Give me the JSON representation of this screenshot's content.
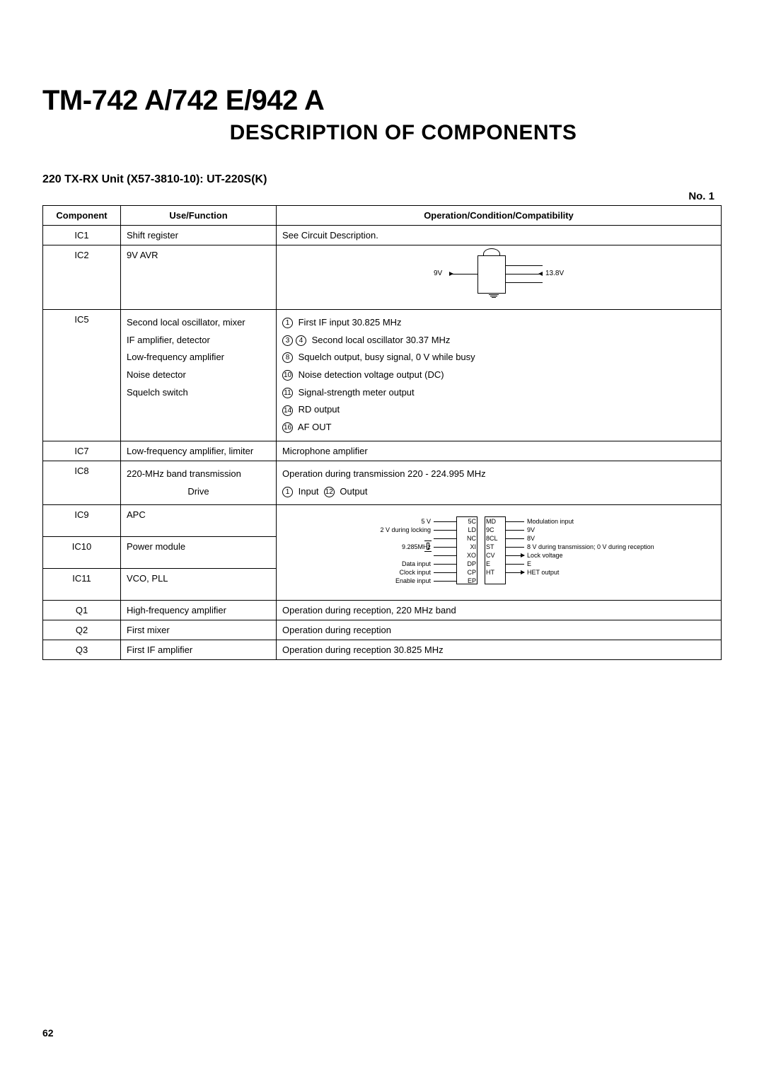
{
  "title_model": "TM-742 A/742 E/942 A",
  "section_title": "DESCRIPTION OF COMPONENTS",
  "unit_line": "220 TX-RX Unit (X57-3810-10): UT-220S(K)",
  "table_number": "No. 1",
  "headers": {
    "c1": "Component",
    "c2": "Use/Function",
    "c3": "Operation/Condition/Compatibility"
  },
  "rows": {
    "ic1": {
      "comp": "IC1",
      "fn": "Shift register",
      "op": "See Circuit Description."
    },
    "ic2": {
      "comp": "IC2",
      "fn": "9V AVR",
      "diag": {
        "left_label": "9V",
        "right_label": "13.8V"
      }
    },
    "ic5": {
      "comp": "IC5",
      "fns": [
        "Second local oscillator, mixer",
        "IF amplifier, detector",
        "Low-frequency amplifier",
        "Noise detector",
        "Squelch switch"
      ],
      "ops": [
        {
          "pins": [
            "1"
          ],
          "text": "First IF input 30.825 MHz"
        },
        {
          "pins": [
            "3",
            "4"
          ],
          "text": "Second local oscillator 30.37 MHz"
        },
        {
          "pins": [
            "8"
          ],
          "text": "Squelch output, busy signal, 0 V while busy"
        },
        {
          "pins": [
            "10"
          ],
          "text": "Noise detection voltage output (DC)"
        },
        {
          "pins": [
            "11"
          ],
          "text": "Signal-strength meter output"
        },
        {
          "pins": [
            "14"
          ],
          "text": "RD output"
        },
        {
          "pins": [
            "16"
          ],
          "text": "AF OUT"
        }
      ]
    },
    "ic7": {
      "comp": "IC7",
      "fn": "Low-frequency amplifier, limiter",
      "op": "Microphone amplifier"
    },
    "ic8": {
      "comp": "IC8",
      "fns": [
        "220-MHz band transmission",
        "Drive"
      ],
      "op_line1": "Operation during transmission 220 - 224.995 MHz",
      "op_line2": {
        "pins": [
          "1"
        ],
        "t1": "Input",
        "pins2": [
          "12"
        ],
        "t2": "Output"
      }
    },
    "ic9": {
      "comp": "IC9",
      "fn": "APC"
    },
    "ic10": {
      "comp": "IC10",
      "fn": "Power module"
    },
    "ic11": {
      "comp": "IC11",
      "fn": "VCO, PLL",
      "vco": {
        "left_pins": [
          "5C",
          "LD",
          "NC",
          "XI",
          "XO",
          "DP",
          "CP",
          "EP"
        ],
        "right_pins": [
          "MD",
          "9C",
          "8CL",
          "ST",
          "CV",
          "E",
          "HT"
        ],
        "left_labels": [
          "5 V",
          "2 V during locking",
          "",
          "9.285MHz",
          "",
          "Data input",
          "Clock input",
          "Enable input"
        ],
        "right_labels": [
          "Modulation input",
          "9V",
          "8V",
          "8 V during transmission; 0 V during reception",
          "Lock voltage",
          "E",
          "HET output"
        ]
      }
    },
    "q1": {
      "comp": "Q1",
      "fn": "High-frequency amplifier",
      "op": "Operation during reception, 220 MHz band"
    },
    "q2": {
      "comp": "Q2",
      "fn": "First mixer",
      "op": "Operation during reception"
    },
    "q3": {
      "comp": "Q3",
      "fn": "First IF amplifier",
      "op": "Operation during reception 30.825 MHz"
    }
  },
  "page_number": "62",
  "colors": {
    "text": "#000000",
    "bg": "#ffffff",
    "border": "#000000"
  }
}
